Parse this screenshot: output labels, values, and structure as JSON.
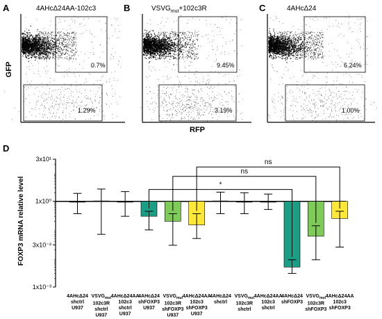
{
  "colors": {
    "teal": "#1a9e86",
    "green": "#7ecb5a",
    "yellow": "#ffe838",
    "black": "#000000"
  },
  "facs": {
    "panels": [
      {
        "letter": "A",
        "title": "4AHcΔ24AA-102c3",
        "upper_gate_pct": "0.7%",
        "lower_gate_pct": "1.29%"
      },
      {
        "letter": "B",
        "title": "VSVGmut+102c3R",
        "upper_gate_pct": "9.45%",
        "lower_gate_pct": "3.19%"
      },
      {
        "letter": "C",
        "title": "4AHcΔ24",
        "upper_gate_pct": "6.24%",
        "lower_gate_pct": "1.00%"
      }
    ],
    "y_label": "GFP",
    "x_label": "RFP"
  },
  "chart_data": {
    "type": "bar",
    "panel_letter": "D",
    "ylabel": "FOXP3 mRNA relative level",
    "yscale": "log",
    "ylim": [
      0.001,
      30
    ],
    "yticks": [
      "1x10⁻³",
      "3x10⁻²",
      "1x10⁰",
      "3x10¹"
    ],
    "categories": [
      "4AHcΔ24 shctrl U937",
      "VSVGmut 102c3R shctrl U937",
      "4AHcΔ24AA 102c3 shctrl U937",
      "4AHcΔ24 shFOXP3 U937",
      "VSVGmut 102c3R shFOXP3 U937",
      "4AHcΔ24AA 102c3 shFOXP3 U937",
      "4AHcΔ24 shctrl",
      "VSVGmut 102c3R shctrl",
      "4AHcΔ24AA 102c3 shctrl",
      "4AHcΔ24 shFOXP3",
      "VSVGmut 102c3R shFOXP3",
      "4AHcΔ24AA 102c3 shFOXP3"
    ],
    "category_lines": [
      [
        "4AHcΔ24",
        "shctrl",
        "U937"
      ],
      [
        "VSVG|mut",
        "102c3R",
        "shctrl",
        "U937"
      ],
      [
        "4AHcΔ24AA",
        "102c3",
        "shctrl",
        "U937"
      ],
      [
        "4AHcΔ24",
        "shFOXP3",
        "U937"
      ],
      [
        "VSVG|mut",
        "102c3R",
        "shFOXP3",
        "U937"
      ],
      [
        "4AHcΔ24AA",
        "102c3",
        "shFOXP3",
        "U937"
      ],
      [
        "4AHcΔ24",
        "shctrl"
      ],
      [
        "VSVG|mut",
        "102c3R",
        "shctrl"
      ],
      [
        "4AHcΔ24AA",
        "102c3",
        "shctrl"
      ],
      [
        "4AHcΔ24",
        "shFOXP3"
      ],
      [
        "VSVG|mut",
        "102c3R",
        "shFOXP3"
      ],
      [
        "4AHcΔ24AA",
        "102c3",
        "shFOXP3"
      ]
    ],
    "values": [
      1.0,
      1.05,
      1.0,
      0.3,
      0.2,
      0.15,
      1.05,
      1.0,
      1.0,
      0.005,
      0.06,
      0.25
    ],
    "err_low": [
      0.37,
      0.07,
      0.3,
      0.1,
      0.029,
      0.05,
      0.37,
      0.37,
      0.52,
      0.003,
      0.009,
      0.025
    ],
    "err_high": [
      1.9,
      2.7,
      2.2,
      0.45,
      0.37,
      0.37,
      2.1,
      2.0,
      1.8,
      0.009,
      0.14,
      0.45
    ],
    "bar_colors": [
      "black",
      "black",
      "black",
      "teal",
      "green",
      "yellow",
      "black",
      "black",
      "black",
      "teal",
      "green",
      "yellow"
    ],
    "significance": [
      {
        "from": 3,
        "to": 9,
        "label": "*"
      },
      {
        "from": 4,
        "to": 10,
        "label": "ns"
      },
      {
        "from": 5,
        "to": 11,
        "label": "ns"
      }
    ]
  }
}
